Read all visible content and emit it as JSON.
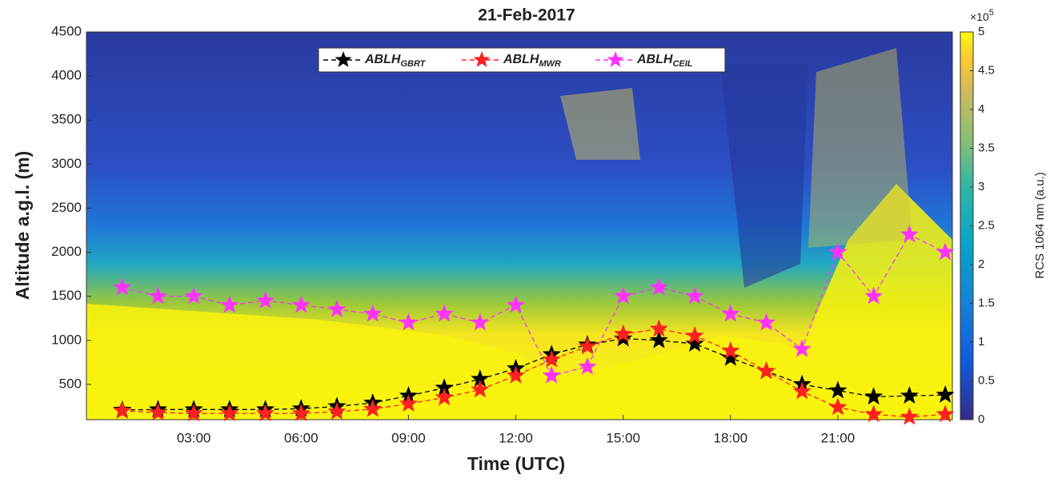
{
  "chart_data": {
    "type": "line",
    "title": "21-Feb-2017",
    "x_label": "Time (UTC)",
    "y_label": "Altitude a.g.l. (m)",
    "colorbar_label": "RCS 1064 nm (a.u.)",
    "colorbar_scale": {
      "text": "×10",
      "exponent": "5"
    },
    "colorbar_lim": [
      0,
      5
    ],
    "colorbar_ticks": [
      0,
      0.5,
      1,
      1.5,
      2,
      2.5,
      3,
      3.5,
      4,
      4.5,
      5
    ],
    "x": [
      1,
      2,
      3,
      4,
      5,
      6,
      7,
      8,
      9,
      10,
      11,
      12,
      13,
      14,
      15,
      16,
      17,
      18,
      19,
      20,
      21,
      22,
      23,
      24
    ],
    "xlim": [
      0,
      24.2
    ],
    "xticks": [
      {
        "value": 3,
        "label": "03:00"
      },
      {
        "value": 6,
        "label": "06:00"
      },
      {
        "value": 9,
        "label": "09:00"
      },
      {
        "value": 12,
        "label": "12:00"
      },
      {
        "value": 15,
        "label": "15:00"
      },
      {
        "value": 18,
        "label": "18:00"
      },
      {
        "value": 21,
        "label": "21:00"
      }
    ],
    "ylim": [
      100,
      4500
    ],
    "yticks": [
      500,
      1000,
      1500,
      2000,
      2500,
      3000,
      3500,
      4000,
      4500
    ],
    "series": [
      {
        "name": "ABLH",
        "subscript": "GBRT",
        "color": "#000000",
        "values": [
          210,
          215,
          215,
          215,
          215,
          225,
          250,
          290,
          370,
          460,
          560,
          680,
          840,
          950,
          1020,
          1000,
          960,
          800,
          650,
          500,
          430,
          360,
          370,
          380
        ]
      },
      {
        "name": "ABLH",
        "subscript": "MWR",
        "color": "#ff2020",
        "values": [
          200,
          180,
          170,
          170,
          170,
          170,
          190,
          220,
          280,
          350,
          440,
          600,
          780,
          930,
          1070,
          1130,
          1050,
          880,
          650,
          420,
          240,
          160,
          130,
          160
        ]
      },
      {
        "name": "ABLH",
        "subscript": "CEIL",
        "color": "#ff33ff",
        "values": [
          1600,
          1500,
          1500,
          1400,
          1450,
          1400,
          1350,
          1300,
          1200,
          1300,
          1200,
          1400,
          600,
          700,
          1500,
          1600,
          1500,
          1300,
          1200,
          900,
          2000,
          1500,
          2200,
          2000
        ]
      }
    ]
  }
}
